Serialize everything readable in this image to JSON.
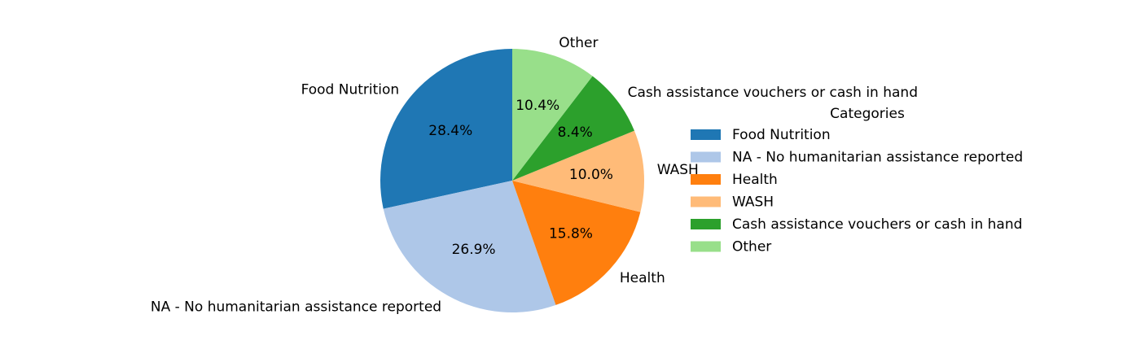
{
  "chart_data": {
    "type": "pie",
    "title": "",
    "legend": {
      "title": "Categories",
      "placement": "right"
    },
    "slices": [
      {
        "label": "Food Nutrition",
        "value": 28.4,
        "pct_label": "28.4%",
        "color": "#1f77b4"
      },
      {
        "label": "NA - No humanitarian assistance reported",
        "value": 26.9,
        "pct_label": "26.9%",
        "color": "#aec7e8"
      },
      {
        "label": "Health",
        "value": 15.8,
        "pct_label": "15.8%",
        "color": "#ff7f0e"
      },
      {
        "label": "WASH",
        "value": 10.0,
        "pct_label": "10.0%",
        "color": "#ffbb78"
      },
      {
        "label": "Cash assistance vouchers or cash in hand",
        "value": 8.4,
        "pct_label": "8.4%",
        "color": "#2ca02c"
      },
      {
        "label": "Other",
        "value": 10.4,
        "pct_label": "10.4%",
        "color": "#98df8a"
      }
    ],
    "start_angle_deg": 90,
    "direction": "counterclockwise"
  }
}
